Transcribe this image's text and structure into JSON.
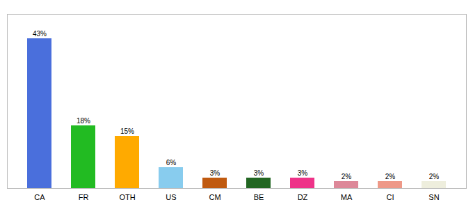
{
  "chart_data": {
    "type": "bar",
    "categories": [
      "CA",
      "FR",
      "OTH",
      "US",
      "CM",
      "BE",
      "DZ",
      "MA",
      "CI",
      "SN"
    ],
    "values": [
      43,
      18,
      15,
      6,
      3,
      3,
      3,
      2,
      2,
      2
    ],
    "value_labels": [
      "43%",
      "18%",
      "15%",
      "6%",
      "3%",
      "3%",
      "3%",
      "2%",
      "2%",
      "2%"
    ],
    "colors": [
      "#4a6fdc",
      "#22bb22",
      "#ffaa00",
      "#88ccee",
      "#c05a10",
      "#226622",
      "#ee3388",
      "#dd8899",
      "#ee9988",
      "#eeeedd"
    ],
    "data_labels": true,
    "ylim": [
      0,
      50
    ],
    "tick_labels": "x",
    "grid": false
  }
}
